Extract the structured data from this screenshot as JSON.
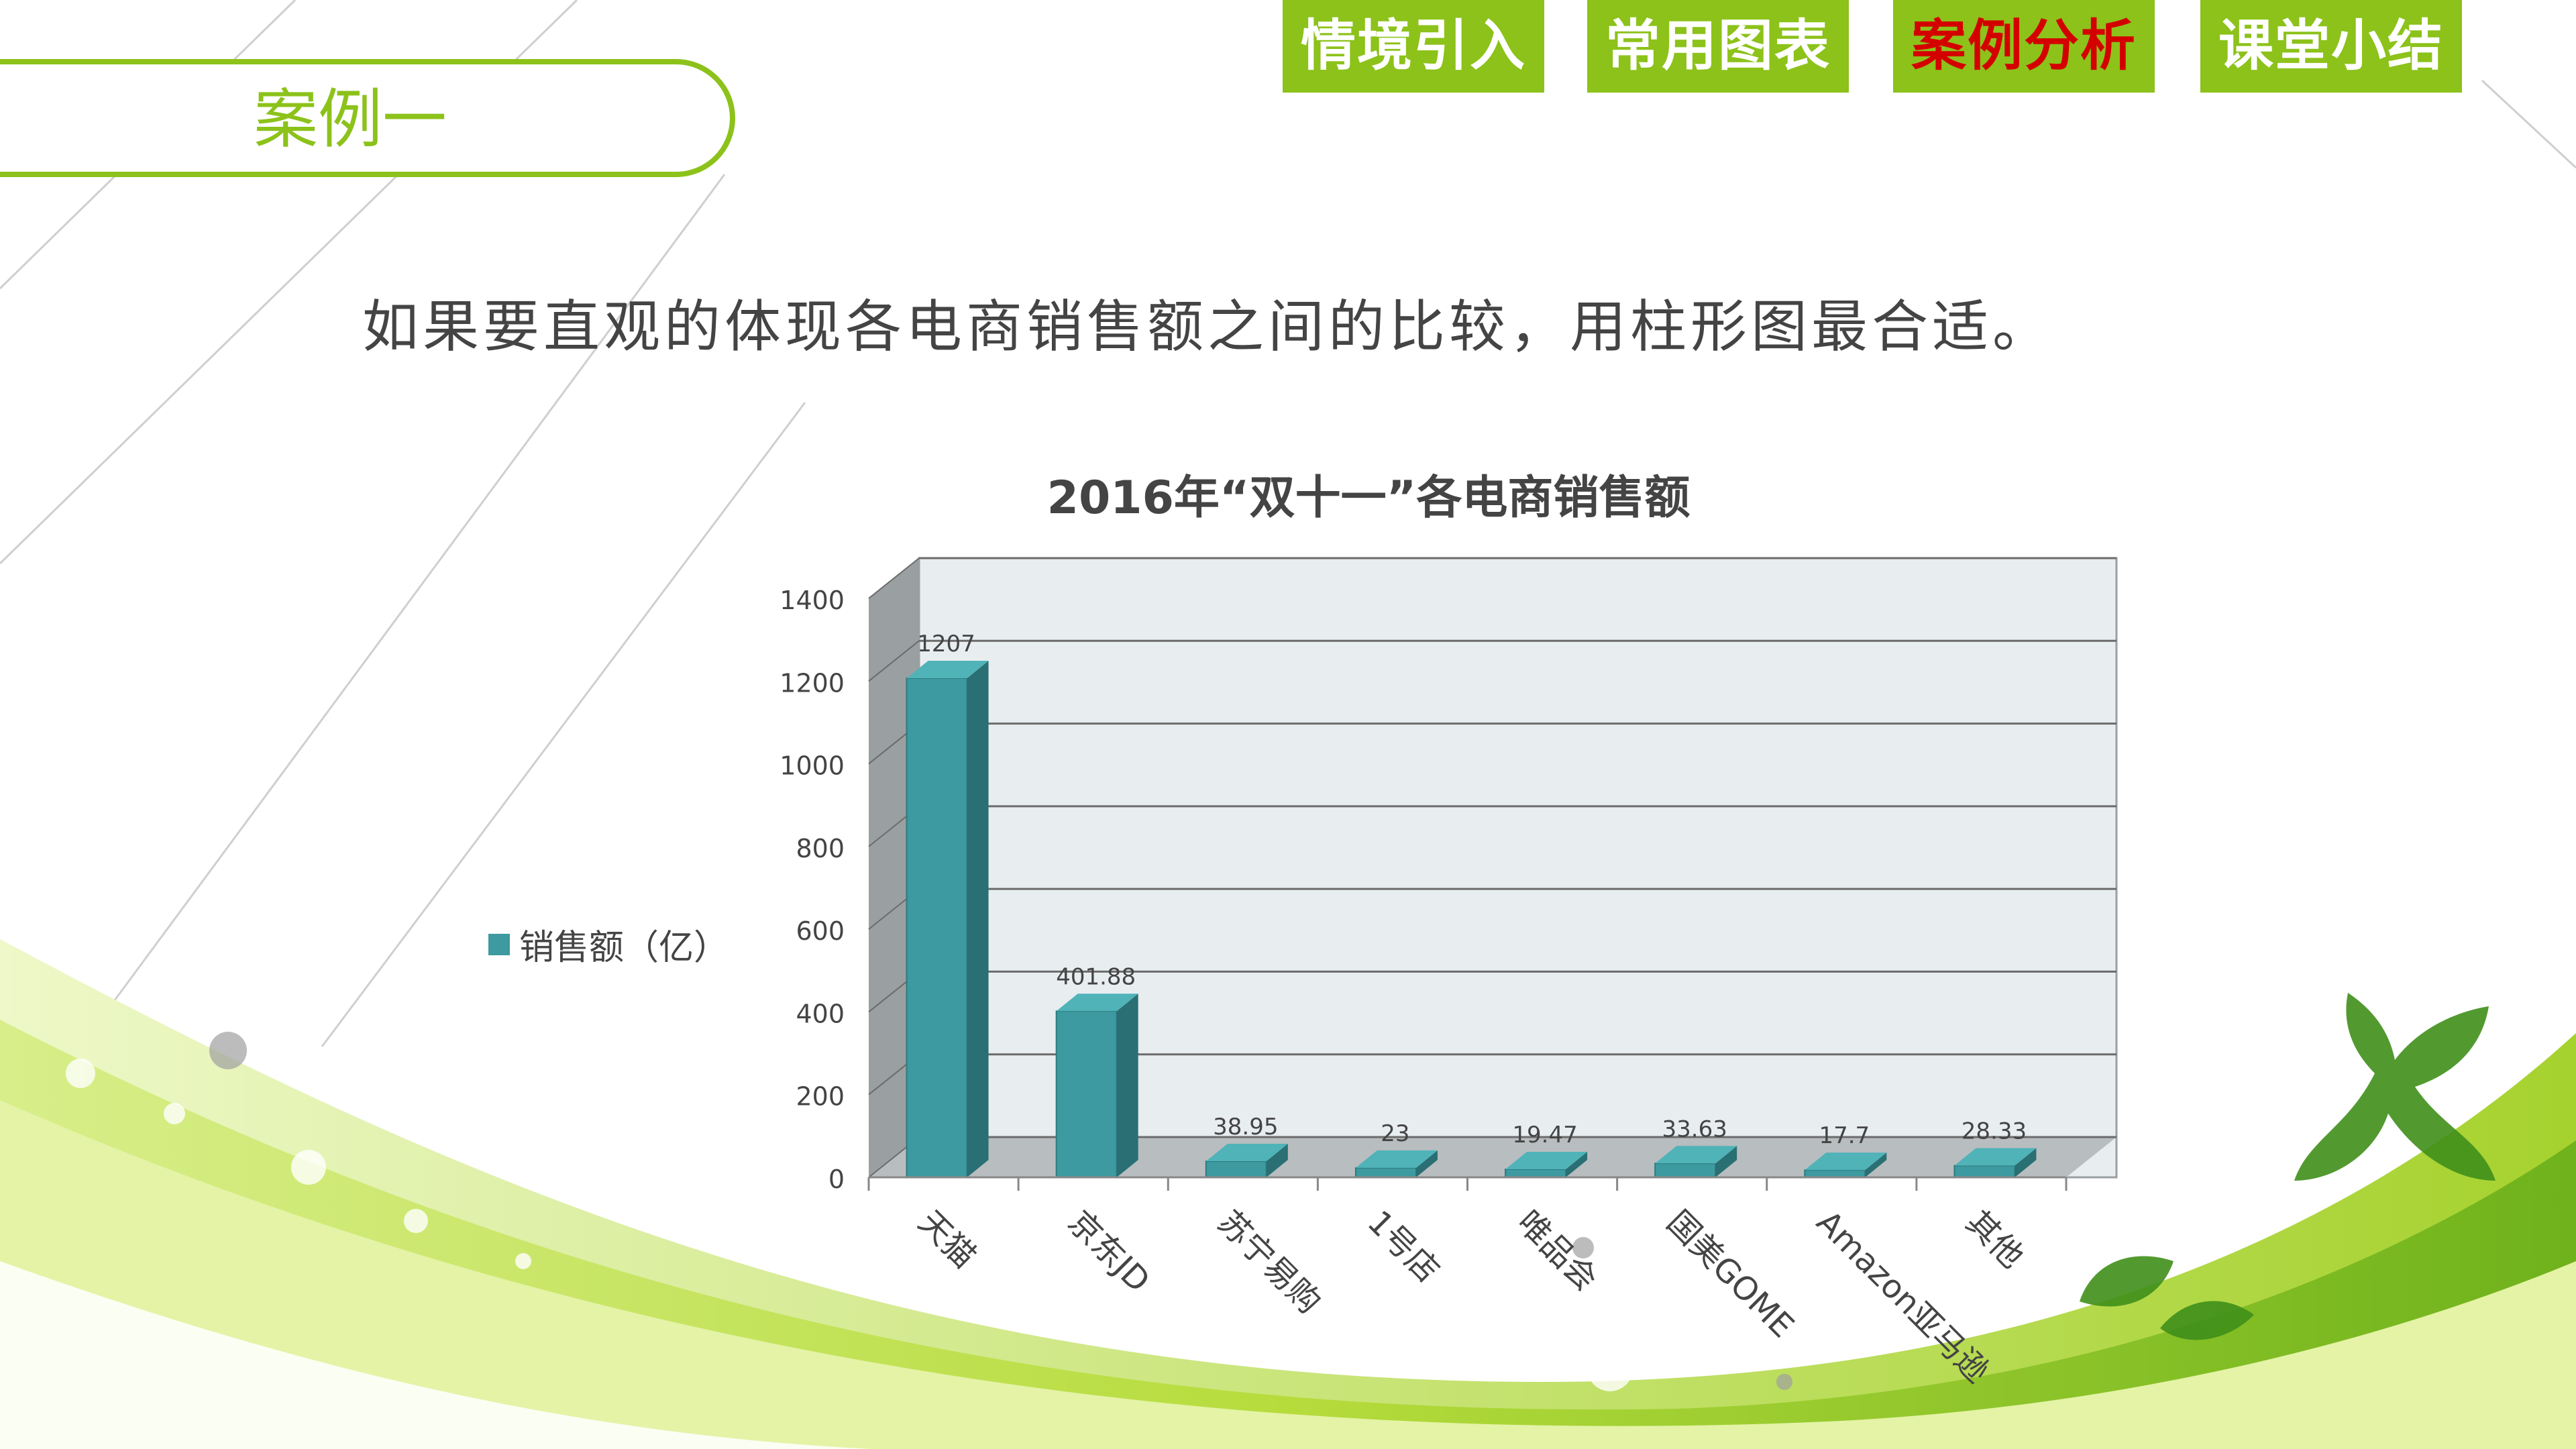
{
  "nav": {
    "tabs": [
      {
        "label": "情境引入",
        "active": false
      },
      {
        "label": "常用图表",
        "active": false
      },
      {
        "label": "案例分析",
        "active": true
      },
      {
        "label": "课堂小结",
        "active": false
      }
    ]
  },
  "case_label": "案例一",
  "subtitle": "如果要直观的体现各电商销售额之间的比较，用柱形图最合适。",
  "colors": {
    "accent": "#8cc21a",
    "active_tab_text": "#d40000",
    "bar_front": "#3c9aa0",
    "bar_side": "#2a6f73",
    "bar_top": "#4fb3b8",
    "plot_bg": "#e8edf0",
    "plot_wall": "#9aa0a2"
  },
  "chart_data": {
    "type": "bar",
    "title": "2016年“双十一”各电商销售额",
    "categories": [
      "天猫",
      "京东JD",
      "苏宁易购",
      "1号店",
      "唯品会",
      "国美GOME",
      "Amazon亚马逊",
      "其他"
    ],
    "series": [
      {
        "name": "销售额（亿）",
        "values": [
          1207,
          401.88,
          38.95,
          23,
          19.47,
          33.63,
          17.7,
          28.33
        ]
      }
    ],
    "data_labels": [
      "1207",
      "401.88",
      "38.95",
      "23",
      "19.47",
      "33.63",
      "17.7",
      "28.33"
    ],
    "ylim": [
      0,
      1400
    ],
    "yticks": [
      0,
      200,
      400,
      600,
      800,
      1000,
      1200,
      1400
    ],
    "legend_position": "left",
    "grid": true,
    "style": "3d-column"
  }
}
